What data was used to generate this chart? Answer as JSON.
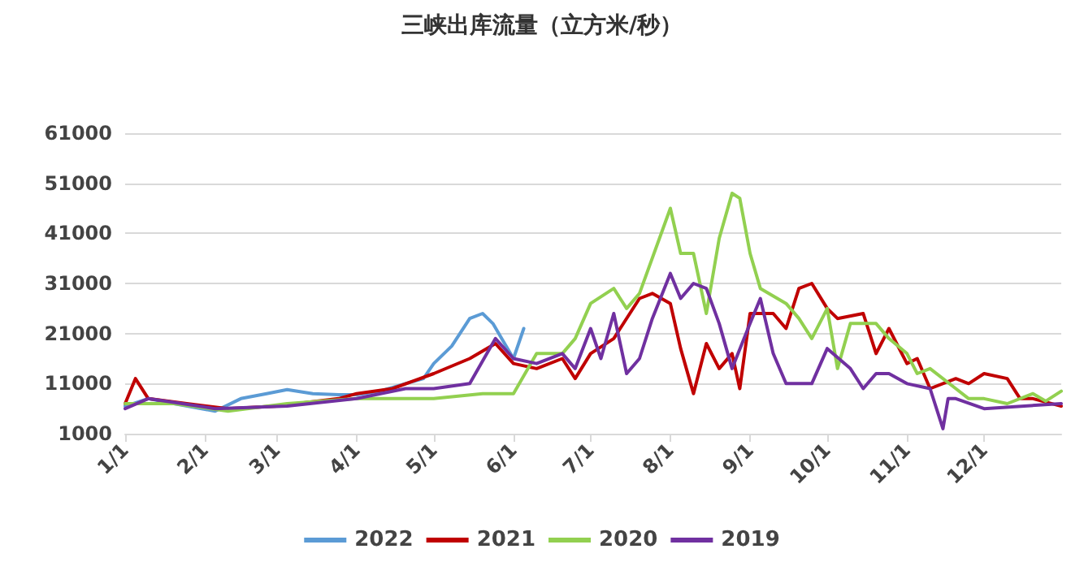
{
  "chart_data": {
    "type": "line",
    "title": "三峡出库流量（立方米/秒）",
    "xlim": [
      "--01-01",
      "--12-31"
    ],
    "xticks": [
      {
        "value": "--01-01",
        "label": "1/1"
      },
      {
        "value": "--02-01",
        "label": "2/1"
      },
      {
        "value": "--03-01",
        "label": "3/1"
      },
      {
        "value": "--04-01",
        "label": "4/1"
      },
      {
        "value": "--05-01",
        "label": "5/1"
      },
      {
        "value": "--06-01",
        "label": "6/1"
      },
      {
        "value": "--07-01",
        "label": "7/1"
      },
      {
        "value": "--08-01",
        "label": "8/1"
      },
      {
        "value": "--09-01",
        "label": "9/1"
      },
      {
        "value": "--10-01",
        "label": "10/1"
      },
      {
        "value": "--11-01",
        "label": "11/1"
      },
      {
        "value": "--12-01",
        "label": "12/1"
      }
    ],
    "ylim": [
      1000,
      61000
    ],
    "yticks": [
      1000,
      11000,
      21000,
      31000,
      41000,
      51000,
      61000
    ],
    "grid": "y",
    "legend": "bottom",
    "marker": "none",
    "line_style": "solid",
    "series": [
      {
        "name": "2022",
        "color": "#5b9bd5",
        "x": [
          "--01-01",
          "--01-10",
          "--01-20",
          "--02-05",
          "--02-15",
          "--02-25",
          "--03-05",
          "--03-15",
          "--03-25",
          "--04-01",
          "--04-10",
          "--04-20",
          "--04-27",
          "--05-01",
          "--05-08",
          "--05-15",
          "--05-20",
          "--05-24",
          "--05-28",
          "--06-01",
          "--06-05"
        ],
        "values": [
          6500,
          8000,
          7000,
          5500,
          8000,
          9000,
          9800,
          9000,
          8800,
          8800,
          9500,
          11000,
          12000,
          15000,
          18500,
          24000,
          25000,
          23000,
          19500,
          16000,
          22000
        ]
      },
      {
        "name": "2021",
        "color": "#c00000",
        "x": [
          "--01-01",
          "--01-05",
          "--01-10",
          "--01-25",
          "--02-10",
          "--03-01",
          "--03-25",
          "--04-01",
          "--04-15",
          "--05-01",
          "--05-15",
          "--05-25",
          "--06-01",
          "--06-10",
          "--06-20",
          "--06-25",
          "--07-01",
          "--07-10",
          "--07-20",
          "--07-25",
          "--08-01",
          "--08-05",
          "--08-10",
          "--08-15",
          "--08-20",
          "--08-25",
          "--08-28",
          "--09-01",
          "--09-10",
          "--09-15",
          "--09-20",
          "--09-25",
          "--10-01",
          "--10-05",
          "--10-15",
          "--10-20",
          "--10-25",
          "--11-01",
          "--11-05",
          "--11-10",
          "--11-20",
          "--11-25",
          "--12-01",
          "--12-10",
          "--12-15",
          "--12-20",
          "--12-31"
        ],
        "values": [
          7000,
          12000,
          8000,
          7000,
          6000,
          6500,
          8000,
          9000,
          10000,
          13000,
          16000,
          19000,
          15000,
          14000,
          16000,
          12000,
          17000,
          20000,
          28000,
          29000,
          27000,
          18000,
          9000,
          19000,
          14000,
          17000,
          10000,
          25000,
          25000,
          22000,
          30000,
          31000,
          26000,
          24000,
          25000,
          17000,
          22000,
          15000,
          16000,
          10000,
          12000,
          11000,
          13000,
          12000,
          8000,
          8000,
          6500
        ]
      },
      {
        "name": "2020",
        "color": "#92d050",
        "x": [
          "--01-01",
          "--01-20",
          "--02-10",
          "--03-05",
          "--04-01",
          "--05-01",
          "--05-20",
          "--06-01",
          "--06-10",
          "--06-20",
          "--06-25",
          "--07-01",
          "--07-10",
          "--07-15",
          "--07-20",
          "--08-01",
          "--08-05",
          "--08-10",
          "--08-15",
          "--08-20",
          "--08-25",
          "--08-28",
          "--09-01",
          "--09-05",
          "--09-15",
          "--09-20",
          "--09-25",
          "--10-01",
          "--10-05",
          "--10-10",
          "--10-20",
          "--10-25",
          "--11-01",
          "--11-05",
          "--11-10",
          "--11-20",
          "--11-25",
          "--12-01",
          "--12-10",
          "--12-20",
          "--12-25",
          "--12-31"
        ],
        "values": [
          7000,
          7000,
          5500,
          7000,
          8000,
          8000,
          9000,
          9000,
          17000,
          17000,
          20000,
          27000,
          30000,
          26000,
          29000,
          46000,
          37000,
          37000,
          25000,
          40000,
          49000,
          48000,
          37000,
          30000,
          27000,
          24000,
          20000,
          26000,
          14000,
          23000,
          23000,
          20000,
          17000,
          13000,
          14000,
          10000,
          8000,
          8000,
          7000,
          9000,
          7500,
          9500
        ]
      },
      {
        "name": "2019",
        "color": "#7030a0",
        "x": [
          "--01-01",
          "--01-10",
          "--02-05",
          "--03-05",
          "--04-01",
          "--04-20",
          "--05-01",
          "--05-15",
          "--05-25",
          "--06-01",
          "--06-10",
          "--06-20",
          "--06-25",
          "--07-01",
          "--07-05",
          "--07-10",
          "--07-15",
          "--07-20",
          "--07-25",
          "--08-01",
          "--08-05",
          "--08-10",
          "--08-15",
          "--08-20",
          "--08-25",
          "--09-01",
          "--09-05",
          "--09-10",
          "--09-15",
          "--09-25",
          "--10-01",
          "--10-10",
          "--10-15",
          "--10-20",
          "--10-25",
          "--11-01",
          "--11-10",
          "--11-15",
          "--11-17",
          "--11-20",
          "--12-01",
          "--12-31"
        ],
        "values": [
          6000,
          8000,
          6000,
          6500,
          8000,
          10000,
          10000,
          11000,
          20000,
          16000,
          15000,
          17000,
          14000,
          22000,
          16000,
          25000,
          13000,
          16000,
          24000,
          33000,
          28000,
          31000,
          30000,
          23000,
          14000,
          23000,
          28000,
          17000,
          11000,
          11000,
          18000,
          14000,
          10000,
          13000,
          13000,
          11000,
          10000,
          2000,
          8000,
          8000,
          6000,
          7000
        ]
      }
    ]
  }
}
